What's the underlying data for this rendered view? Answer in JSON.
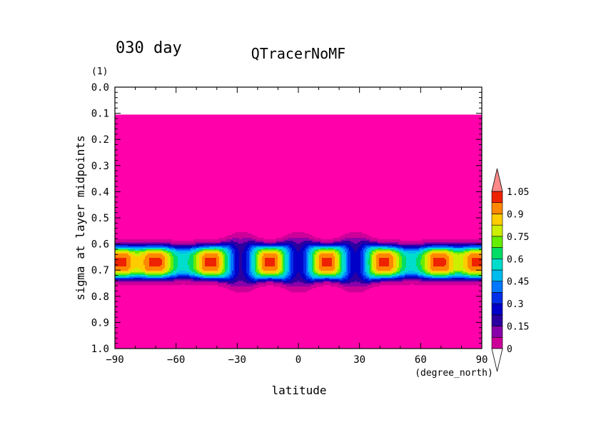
{
  "chart_data": {
    "type": "heatmap",
    "title": "QTracerNoMF",
    "time_label": "030 day",
    "xlabel": "latitude",
    "x_unit": "(degree_north)",
    "ylabel": "sigma at layer midpoints",
    "y_unit": "(1)",
    "xlim": [
      -90,
      90
    ],
    "ylim": [
      1.0,
      0.0
    ],
    "x_ticks": [
      "−90",
      "−60",
      "−30",
      "0",
      "30",
      "60",
      "90"
    ],
    "x_tick_values": [
      -90,
      -60,
      -30,
      0,
      30,
      60,
      90
    ],
    "y_ticks": [
      "0.0",
      "0.1",
      "0.2",
      "0.3",
      "0.4",
      "0.5",
      "0.6",
      "0.7",
      "0.8",
      "0.9",
      "1.0"
    ],
    "y_tick_values": [
      0.0,
      0.1,
      0.2,
      0.3,
      0.4,
      0.5,
      0.6,
      0.7,
      0.8,
      0.9,
      1.0
    ],
    "no_data_above_sigma": 0.105,
    "band": {
      "sigma_center": 0.67,
      "sigma_top": 0.58,
      "sigma_bottom": 0.78
    },
    "maxima": [
      {
        "lat": -88,
        "sigma": 0.67,
        "value": 0.97
      },
      {
        "lat": -70,
        "sigma": 0.67,
        "value": 0.97
      },
      {
        "lat": -43,
        "sigma": 0.67,
        "value": 0.97
      },
      {
        "lat": -14,
        "sigma": 0.67,
        "value": 0.97
      },
      {
        "lat": 14,
        "sigma": 0.67,
        "value": 0.97
      },
      {
        "lat": 42,
        "sigma": 0.67,
        "value": 0.97
      },
      {
        "lat": 69,
        "sigma": 0.67,
        "value": 0.97
      },
      {
        "lat": 88,
        "sigma": 0.67,
        "value": 0.97
      }
    ],
    "minima": [
      {
        "lat": -28,
        "sigma": 0.67,
        "value": 0.22
      },
      {
        "lat": 0,
        "sigma": 0.67,
        "value": 0.22
      },
      {
        "lat": 28,
        "sigma": 0.67,
        "value": 0.22
      }
    ],
    "colorbar": {
      "levels": [
        0,
        0.075,
        0.15,
        0.225,
        0.3,
        0.375,
        0.45,
        0.525,
        0.6,
        0.675,
        0.75,
        0.825,
        0.9,
        0.975,
        1.05
      ],
      "colors": [
        "#ff00aa",
        "#cc0099",
        "#8800aa",
        "#2a00a0",
        "#0000c8",
        "#0030e8",
        "#0077ff",
        "#00bbee",
        "#00ddcc",
        "#00dd66",
        "#66ee00",
        "#ccee00",
        "#ffcc00",
        "#ff8800",
        "#ee2200",
        "#ff8888"
      ],
      "tick_labels": [
        "0",
        "0.15",
        "0.3",
        "0.45",
        "0.6",
        "0.75",
        "0.9",
        "1.05"
      ],
      "tick_values": [
        0,
        0.15,
        0.3,
        0.45,
        0.6,
        0.75,
        0.9,
        1.05
      ]
    }
  }
}
